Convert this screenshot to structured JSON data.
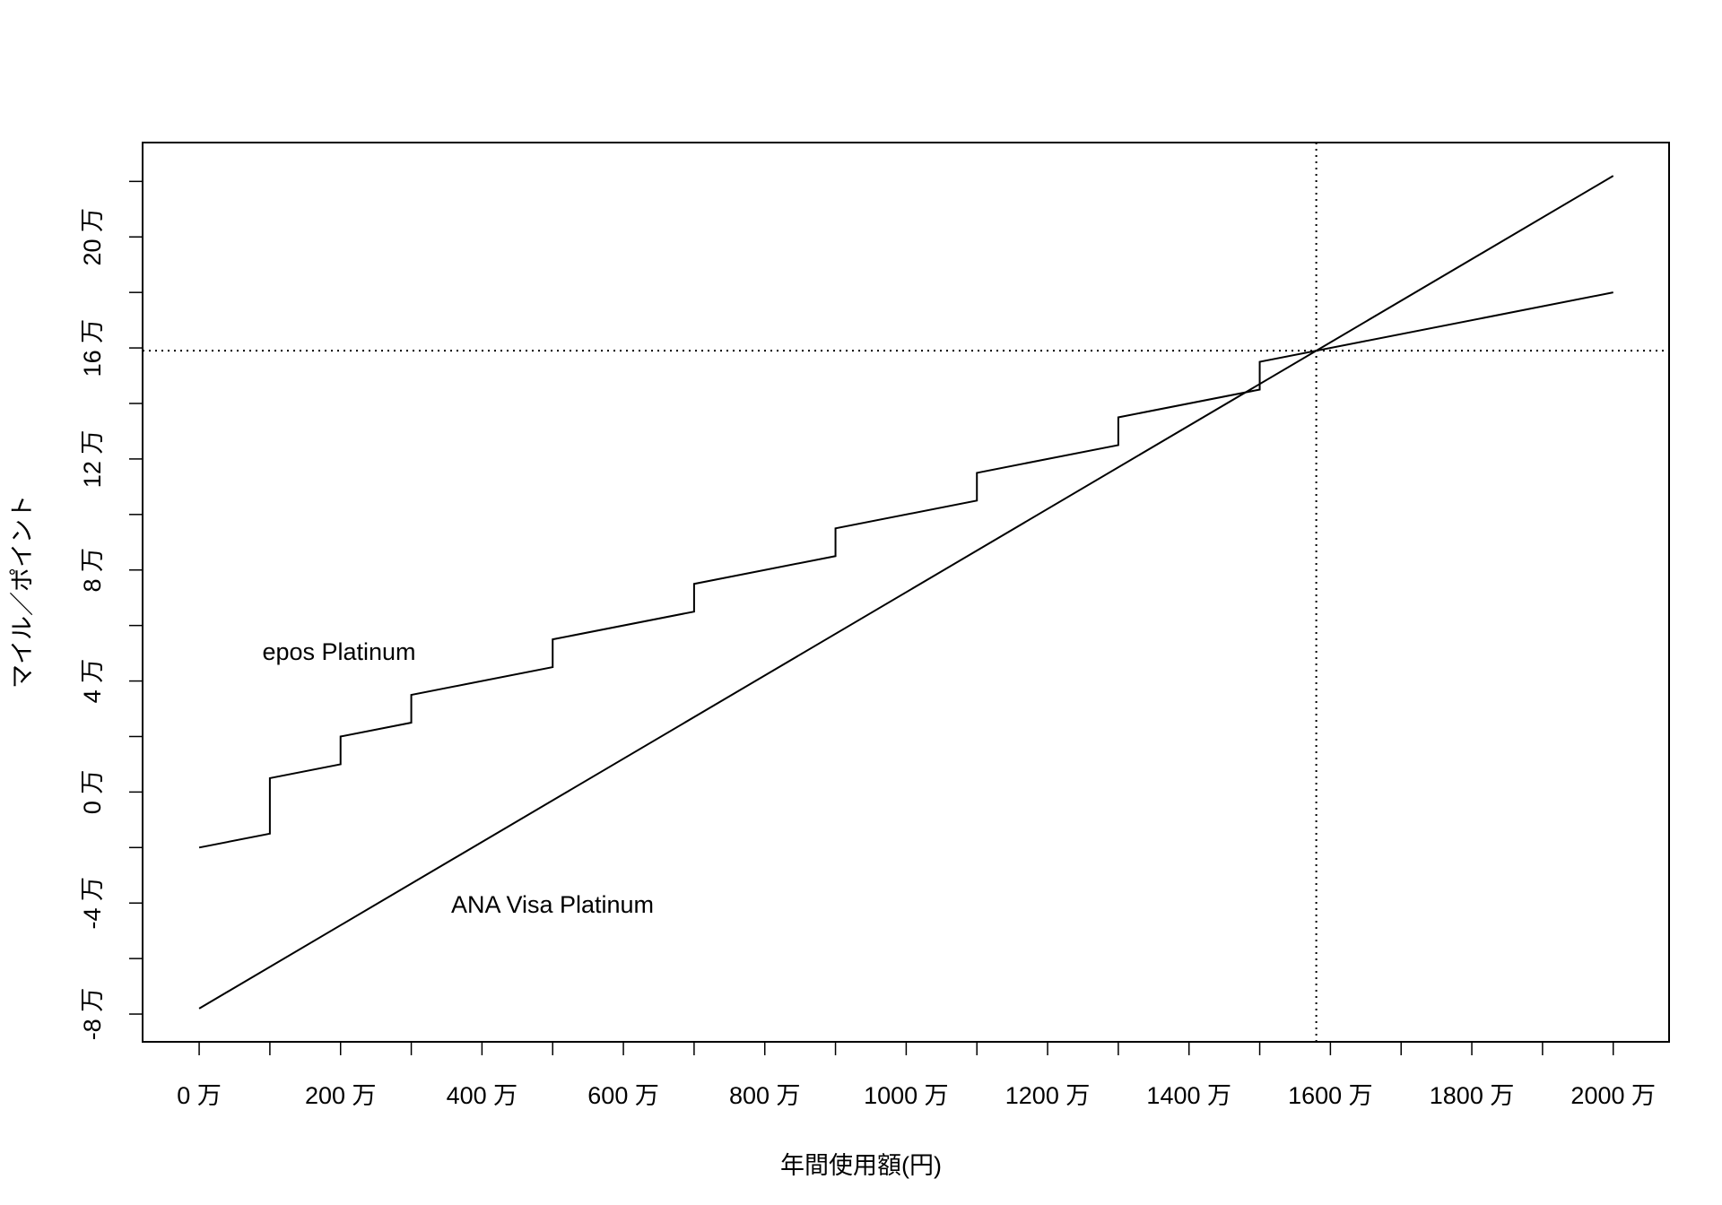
{
  "chart_data": {
    "type": "line",
    "xlabel": "年間使用額(円)",
    "ylabel": "マイル／ポイント",
    "series": [
      {
        "name": "epos Platinum",
        "color": "#000000",
        "x": [
          0,
          100,
          100,
          200,
          200,
          300,
          300,
          500,
          500,
          700,
          700,
          900,
          900,
          1100,
          1100,
          1300,
          1300,
          1500,
          1500,
          2000
        ],
        "values": [
          -2,
          -1.5,
          0.5,
          1,
          2,
          2.5,
          3.5,
          4.5,
          5.5,
          6.5,
          7.5,
          8.5,
          9.5,
          10.5,
          11.5,
          12.5,
          13.5,
          14.5,
          15.5,
          18
        ]
      },
      {
        "name": "ANA Visa Platinum",
        "color": "#000000",
        "x": [
          0,
          2000
        ],
        "values": [
          -7.8,
          22.2
        ]
      }
    ],
    "reference_lines": {
      "x": 1580,
      "y": 15.9
    },
    "xlim": [
      -80,
      2079
    ],
    "ylim": [
      -9,
      23.4
    ],
    "xticks": [
      {
        "value": 0,
        "label": "0 万"
      },
      {
        "value": 100,
        "label": null
      },
      {
        "value": 200,
        "label": "200 万"
      },
      {
        "value": 300,
        "label": null
      },
      {
        "value": 400,
        "label": "400 万"
      },
      {
        "value": 500,
        "label": null
      },
      {
        "value": 600,
        "label": "600 万"
      },
      {
        "value": 700,
        "label": null
      },
      {
        "value": 800,
        "label": "800 万"
      },
      {
        "value": 900,
        "label": null
      },
      {
        "value": 1000,
        "label": "1000 万"
      },
      {
        "value": 1100,
        "label": null
      },
      {
        "value": 1200,
        "label": "1200 万"
      },
      {
        "value": 1300,
        "label": null
      },
      {
        "value": 1400,
        "label": "1400 万"
      },
      {
        "value": 1500,
        "label": null
      },
      {
        "value": 1600,
        "label": "1600 万"
      },
      {
        "value": 1700,
        "label": null
      },
      {
        "value": 1800,
        "label": "1800 万"
      },
      {
        "value": 1900,
        "label": null
      },
      {
        "value": 2000,
        "label": "2000 万"
      }
    ],
    "yticks": [
      {
        "value": -8,
        "label": "-8 万"
      },
      {
        "value": -6,
        "label": null
      },
      {
        "value": -4,
        "label": "-4 万"
      },
      {
        "value": -2,
        "label": null
      },
      {
        "value": 0,
        "label": "0 万"
      },
      {
        "value": 2,
        "label": null
      },
      {
        "value": 4,
        "label": "4 万"
      },
      {
        "value": 6,
        "label": null
      },
      {
        "value": 8,
        "label": "8 万"
      },
      {
        "value": 10,
        "label": null
      },
      {
        "value": 12,
        "label": "12 万"
      },
      {
        "value": 14,
        "label": null
      },
      {
        "value": 16,
        "label": "16 万"
      },
      {
        "value": 18,
        "label": null
      },
      {
        "value": 20,
        "label": "20 万"
      },
      {
        "value": 22,
        "label": null
      }
    ],
    "grid": false
  }
}
